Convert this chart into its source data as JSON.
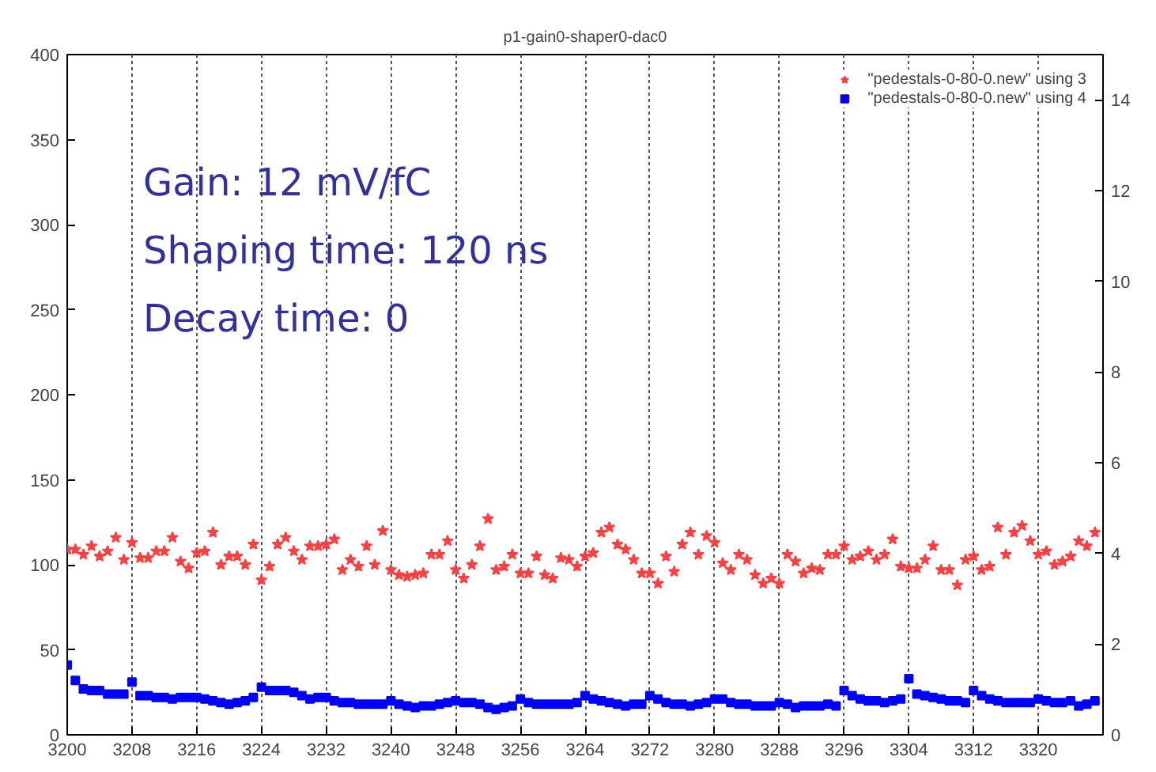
{
  "chart_data": {
    "type": "scatter",
    "title": "p1-gain0-shaper0-dac0",
    "annotations": [
      "Gain: 12 mV/fC",
      "Shaping time: 120 ns",
      "Decay time: 0"
    ],
    "x": [
      3200,
      3201,
      3202,
      3203,
      3204,
      3205,
      3206,
      3207,
      3208,
      3209,
      3210,
      3211,
      3212,
      3213,
      3214,
      3215,
      3216,
      3217,
      3218,
      3219,
      3220,
      3221,
      3222,
      3223,
      3224,
      3225,
      3226,
      3227,
      3228,
      3229,
      3230,
      3231,
      3232,
      3233,
      3234,
      3235,
      3236,
      3237,
      3238,
      3239,
      3240,
      3241,
      3242,
      3243,
      3244,
      3245,
      3246,
      3247,
      3248,
      3249,
      3250,
      3251,
      3252,
      3253,
      3254,
      3255,
      3256,
      3257,
      3258,
      3259,
      3260,
      3261,
      3262,
      3263,
      3264,
      3265,
      3266,
      3267,
      3268,
      3269,
      3270,
      3271,
      3272,
      3273,
      3274,
      3275,
      3276,
      3277,
      3278,
      3279,
      3280,
      3281,
      3282,
      3283,
      3284,
      3285,
      3286,
      3287,
      3288,
      3289,
      3290,
      3291,
      3292,
      3293,
      3294,
      3295,
      3296,
      3297,
      3298,
      3299,
      3300,
      3301,
      3302,
      3303,
      3304,
      3305,
      3306,
      3307,
      3308,
      3309,
      3310,
      3311,
      3312,
      3313,
      3314,
      3315,
      3316,
      3317,
      3318,
      3319,
      3320,
      3321,
      3322,
      3323,
      3324,
      3325,
      3326,
      3327
    ],
    "series": [
      {
        "name": "\"pedestals-0-80-0.new\" using 3",
        "color": "#ff4040",
        "marker": "star",
        "values": [
          109,
          109,
          106,
          111,
          105,
          108,
          116,
          103,
          113,
          104,
          104,
          108,
          108,
          116,
          102,
          98,
          107,
          108,
          119,
          100,
          105,
          105,
          100,
          112,
          91,
          99,
          112,
          116,
          108,
          103,
          111,
          111,
          112,
          115,
          97,
          103,
          99,
          111,
          100,
          120,
          97,
          94,
          93,
          94,
          95,
          106,
          106,
          114,
          97,
          92,
          100,
          111,
          127,
          97,
          99,
          106,
          95,
          95,
          105,
          94,
          92,
          104,
          103,
          99,
          105,
          107,
          119,
          122,
          112,
          109,
          103,
          95,
          95,
          89,
          105,
          96,
          112,
          119,
          106,
          117,
          113,
          101,
          97,
          106,
          103,
          94,
          89,
          92,
          89,
          106,
          102,
          95,
          98,
          97,
          106,
          106,
          111,
          103,
          105,
          108,
          103,
          106,
          115,
          99,
          98,
          98,
          103,
          111,
          97,
          97,
          88,
          103,
          105,
          97,
          99,
          122,
          106,
          119,
          123,
          114,
          106,
          108,
          100,
          102,
          105,
          114,
          111,
          119
        ]
      },
      {
        "name": "\"pedestals-0-80-0.new\" using 4",
        "color": "#0000ff",
        "marker": "square",
        "values": [
          41,
          32,
          27,
          26,
          26,
          24,
          24,
          24,
          31,
          23,
          23,
          22,
          22,
          21,
          22,
          22,
          22,
          21,
          20,
          19,
          18,
          19,
          20,
          22,
          28,
          26,
          26,
          26,
          25,
          23,
          21,
          22,
          22,
          20,
          19,
          19,
          18,
          18,
          18,
          18,
          20,
          18,
          17,
          16,
          17,
          17,
          18,
          19,
          20,
          19,
          19,
          18,
          16,
          15,
          16,
          17,
          21,
          19,
          18,
          18,
          18,
          18,
          18,
          19,
          23,
          21,
          20,
          19,
          18,
          17,
          18,
          18,
          23,
          21,
          19,
          18,
          18,
          17,
          18,
          19,
          21,
          21,
          19,
          18,
          18,
          17,
          17,
          17,
          19,
          18,
          16,
          17,
          17,
          17,
          18,
          17,
          26,
          23,
          21,
          20,
          20,
          19,
          20,
          21,
          33,
          24,
          23,
          22,
          21,
          20,
          20,
          19,
          26,
          23,
          21,
          20,
          19,
          19,
          19,
          19,
          21,
          20,
          19,
          19,
          20,
          17,
          18,
          20
        ]
      }
    ],
    "xlim": [
      3200,
      3328
    ],
    "xticks": [
      3200,
      3208,
      3216,
      3224,
      3232,
      3240,
      3248,
      3256,
      3264,
      3272,
      3280,
      3288,
      3296,
      3304,
      3312,
      3320
    ],
    "ylim": [
      0,
      400
    ],
    "yticks": [
      0,
      50,
      100,
      150,
      200,
      250,
      300,
      350,
      400
    ],
    "y2lim": [
      0,
      15
    ],
    "y2ticks": [
      0,
      2,
      4,
      6,
      8,
      10,
      12,
      14
    ],
    "grid": "x",
    "legend": "top right"
  }
}
